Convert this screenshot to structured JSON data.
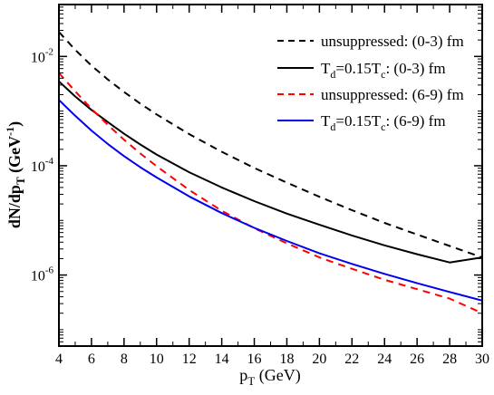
{
  "chart_data": {
    "type": "line",
    "xlabel": "p",
    "xlabel_sub": "T",
    "xlabel_unit": " (GeV)",
    "ylabel_parts": {
      "a": "dN/dp",
      "sub": "T",
      "b": " (GeV",
      "sup": "-1",
      "c": ")"
    },
    "xlim": [
      4,
      30
    ],
    "ylim_log10": [
      -7.3,
      -1.05
    ],
    "yscale": "log",
    "grid": false,
    "legend_position": "top-right",
    "x_ticks": [
      4,
      6,
      8,
      10,
      12,
      14,
      16,
      18,
      20,
      22,
      24,
      26,
      28,
      30
    ],
    "x_tick_labels": [
      "4",
      "6",
      "8",
      "10",
      "12",
      "14",
      "16",
      "18",
      "20",
      "22",
      "24",
      "26",
      "28",
      "30"
    ],
    "y_major_exponents": [
      -6,
      -4,
      -2
    ],
    "y_tick_labels": [
      {
        "base": "10",
        "exp": "-6"
      },
      {
        "base": "10",
        "exp": "-4"
      },
      {
        "base": "10",
        "exp": "-2"
      }
    ],
    "x": [
      4,
      5,
      6,
      7,
      8,
      9,
      10,
      12,
      14,
      16,
      18,
      20,
      22,
      24,
      26,
      28,
      30
    ],
    "series": [
      {
        "name": "unsuppressed: (0-3) fm",
        "legend_parts": {
          "a": "unsuppressed: (0-3) fm"
        },
        "color": "#000000",
        "dash": "8,6",
        "values": [
          0.028,
          0.0132,
          0.0068,
          0.0038,
          0.00224,
          0.00137,
          0.00087,
          0.00038,
          0.00018,
          9.1e-05,
          4.9e-05,
          2.7e-05,
          1.54e-05,
          9e-06,
          5.5e-06,
          3.4e-06,
          2.1e-06
        ]
      },
      {
        "name": "Td=0.15Tc: (0-3) fm",
        "legend_parts": {
          "a": "T",
          "sub1": "d",
          "b": "=0.15T",
          "sub2": "c",
          "c": ": (0-3) fm"
        },
        "color": "#000000",
        "dash": "",
        "values": [
          0.0035,
          0.00185,
          0.00105,
          0.00063,
          0.000385,
          0.000245,
          0.00016,
          7.6e-05,
          4e-05,
          2.25e-05,
          1.33e-05,
          8.3e-06,
          5.3e-06,
          3.5e-06,
          2.4e-06,
          1.7e-06,
          2.1e-06
        ]
      },
      {
        "name": "unsuppressed: (6-9) fm",
        "legend_parts": {
          "a": "unsuppressed: (6-9) fm"
        },
        "color": "#ff0000",
        "dash": "8,6",
        "values": [
          0.005,
          0.0023,
          0.0011,
          0.00056,
          0.0003,
          0.000168,
          9.8e-05,
          3.6e-05,
          1.5e-05,
          7.2e-06,
          3.8e-06,
          2.1e-06,
          1.3e-06,
          8.2e-07,
          5.5e-07,
          3.7e-07,
          2e-07
        ]
      },
      {
        "name": "Td=0.15Tc: (6-9) fm",
        "legend_parts": {
          "a": "T",
          "sub1": "d",
          "b": "=0.15T",
          "sub2": "c",
          "c": ": (6-9) fm"
        },
        "color": "#0000ee",
        "dash": "",
        "values": [
          0.0016,
          0.00082,
          0.00044,
          0.00025,
          0.00015,
          9.4e-05,
          6.1e-05,
          2.75e-05,
          1.36e-05,
          7.3e-06,
          4.2e-06,
          2.5e-06,
          1.6e-06,
          1.05e-06,
          7.1e-07,
          4.9e-07,
          3.4e-07
        ]
      }
    ]
  }
}
